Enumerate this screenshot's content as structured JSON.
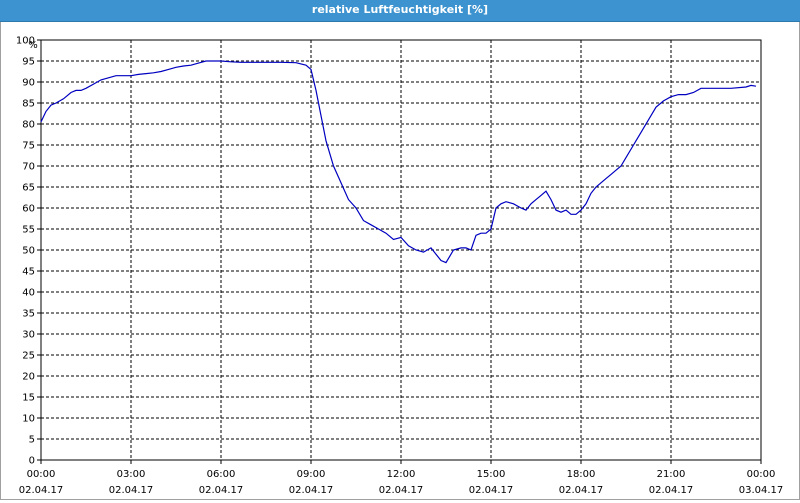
{
  "window": {
    "title": "relative Luftfeuchtigkeit [%]"
  },
  "colors": {
    "titlebar": "#3c93cf",
    "series": "#0000c0",
    "grid": "#000000"
  },
  "chart_data": {
    "type": "line",
    "title": "relative Luftfeuchtigkeit [%]",
    "ylabel": "%",
    "xlabel": "",
    "ylim": [
      0,
      100
    ],
    "xlim": [
      "02.04.17 00:00",
      "03.04.17 00:00"
    ],
    "grid": true,
    "y_ticks": [
      0,
      5,
      10,
      15,
      20,
      25,
      30,
      35,
      40,
      45,
      50,
      55,
      60,
      65,
      70,
      75,
      80,
      85,
      90,
      95,
      100
    ],
    "x_ticks": [
      {
        "time": "00:00",
        "date": "02.04.17"
      },
      {
        "time": "03:00",
        "date": "02.04.17"
      },
      {
        "time": "06:00",
        "date": "02.04.17"
      },
      {
        "time": "09:00",
        "date": "02.04.17"
      },
      {
        "time": "12:00",
        "date": "02.04.17"
      },
      {
        "time": "15:00",
        "date": "02.04.17"
      },
      {
        "time": "18:00",
        "date": "02.04.17"
      },
      {
        "time": "21:00",
        "date": "02.04.17"
      },
      {
        "time": "00:00",
        "date": "03.04.17"
      }
    ],
    "series": [
      {
        "x": [
          "00:00",
          "00:10",
          "00:20",
          "00:30",
          "00:45",
          "01:00",
          "01:10",
          "01:20",
          "01:30",
          "01:45",
          "02:00",
          "02:15",
          "02:30",
          "02:45",
          "03:00",
          "03:15",
          "03:30",
          "03:45",
          "04:00",
          "04:15",
          "04:30",
          "04:45",
          "05:00",
          "05:15",
          "05:30",
          "05:45",
          "06:00",
          "06:20",
          "06:40",
          "07:00",
          "07:30",
          "08:00",
          "08:30",
          "08:50",
          "09:00",
          "09:10",
          "09:20",
          "09:30",
          "09:45",
          "10:00",
          "10:15",
          "10:30",
          "10:45",
          "11:00",
          "11:15",
          "11:30",
          "11:45",
          "12:00",
          "12:15",
          "12:30",
          "12:45",
          "13:00",
          "13:10",
          "13:20",
          "13:30",
          "13:45",
          "14:00",
          "14:10",
          "14:20",
          "14:30",
          "14:40",
          "14:50",
          "15:00",
          "15:10",
          "15:20",
          "15:30",
          "15:45",
          "16:00",
          "16:10",
          "16:20",
          "16:30",
          "16:40",
          "16:50",
          "17:00",
          "17:10",
          "17:20",
          "17:30",
          "17:40",
          "17:50",
          "18:00",
          "18:10",
          "18:20",
          "18:30",
          "18:40",
          "18:50",
          "19:00",
          "19:10",
          "19:20",
          "19:30",
          "19:45",
          "20:00",
          "20:15",
          "20:30",
          "20:45",
          "21:00",
          "21:15",
          "21:30",
          "21:45",
          "22:00",
          "22:30",
          "23:00",
          "23:30",
          "23:40",
          "23:50"
        ],
        "values": [
          80.5,
          83,
          84.5,
          85,
          86,
          87.5,
          88,
          88,
          88.5,
          89.5,
          90.5,
          91,
          91.5,
          91.5,
          91.5,
          91.8,
          92,
          92.2,
          92.5,
          93,
          93.5,
          93.8,
          94,
          94.5,
          95,
          95,
          95,
          94.8,
          94.7,
          94.7,
          94.7,
          94.7,
          94.6,
          94,
          93,
          88,
          82,
          76,
          70,
          66,
          62,
          60,
          57,
          56,
          55,
          54,
          52.5,
          53,
          51,
          50,
          49.5,
          50.5,
          49,
          47.5,
          47,
          50,
          50.5,
          50.5,
          50,
          53.5,
          54,
          54,
          55,
          60,
          61,
          61.5,
          61,
          60,
          59.5,
          61,
          62,
          63,
          64,
          62,
          59.5,
          59,
          59.5,
          58.5,
          58.5,
          59.5,
          61,
          63.5,
          65,
          66,
          67,
          68,
          69,
          70,
          72,
          75,
          78,
          81,
          84,
          85.5,
          86.5,
          87,
          87,
          87.5,
          88.5,
          88.5,
          88.5,
          88.8,
          89.2,
          89
        ]
      }
    ]
  }
}
